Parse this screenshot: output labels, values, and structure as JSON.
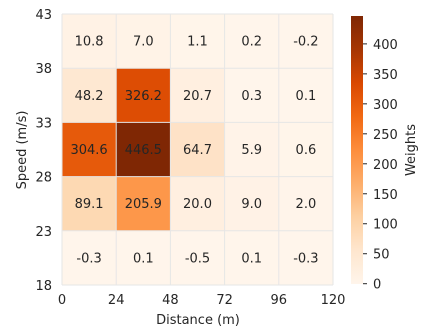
{
  "chart_data": {
    "type": "heatmap",
    "xlabel": "Distance (m)",
    "ylabel": "Speed (m/s)",
    "x_edges": [
      0,
      24,
      48,
      72,
      96,
      120
    ],
    "y_edges": [
      18,
      23,
      28,
      33,
      38,
      43
    ],
    "x_tick_labels": [
      "0",
      "24",
      "48",
      "72",
      "96",
      "120"
    ],
    "y_tick_labels": [
      "18",
      "23",
      "28",
      "33",
      "38",
      "43"
    ],
    "values": [
      [
        10.8,
        7.0,
        1.1,
        0.2,
        -0.2
      ],
      [
        48.2,
        326.2,
        20.7,
        0.3,
        0.1
      ],
      [
        304.6,
        446.5,
        64.7,
        5.9,
        0.6
      ],
      [
        89.1,
        205.9,
        20.0,
        9.0,
        2.0
      ],
      [
        -0.3,
        0.1,
        -0.5,
        0.1,
        -0.3
      ]
    ],
    "value_labels": [
      [
        "10.8",
        "7.0",
        "1.1",
        "0.2",
        "-0.2"
      ],
      [
        "48.2",
        "326.2",
        "20.7",
        "0.3",
        "0.1"
      ],
      [
        "304.6",
        "446.5",
        "64.7",
        "5.9",
        "0.6"
      ],
      [
        "89.1",
        "205.9",
        "20.0",
        "9.0",
        "2.0"
      ],
      [
        "-0.3",
        "0.1",
        "-0.5",
        "0.1",
        "-0.3"
      ]
    ],
    "colorbar": {
      "label": "Weights",
      "range": [
        -0.5,
        446.5
      ],
      "ticks": [
        0,
        50,
        100,
        150,
        200,
        250,
        300,
        350,
        400
      ],
      "tick_labels": [
        "0",
        "50",
        "100",
        "150",
        "200",
        "250",
        "300",
        "350",
        "400"
      ],
      "colormap": "Oranges"
    },
    "grid": true
  }
}
